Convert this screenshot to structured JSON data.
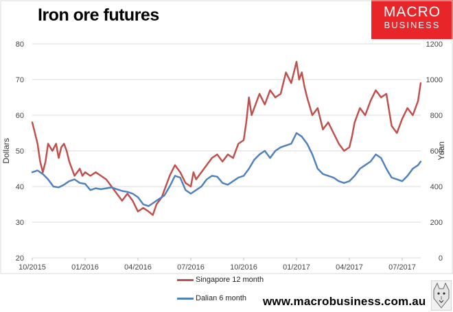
{
  "title": "Iron ore futures",
  "logo": {
    "line1": "MACRO",
    "line2": "BUSINESS"
  },
  "website": "www.macrobusiness.com.au",
  "colors": {
    "singapore": "#c0504d",
    "dalian": "#4f81bd",
    "logo_bg": "#e8262a"
  },
  "chart_data": {
    "type": "line",
    "title": "Iron ore futures",
    "x_ticks": [
      "10/2015",
      "01/2016",
      "04/2016",
      "07/2016",
      "10/2016",
      "01/2017",
      "04/2017",
      "07/2017"
    ],
    "y_left": {
      "label": "Dollars",
      "range": [
        20,
        80
      ],
      "ticks": [
        20,
        30,
        40,
        50,
        60,
        70,
        80
      ]
    },
    "y_right": {
      "label": "Yuan",
      "range": [
        0,
        1200
      ],
      "ticks": [
        0,
        200,
        400,
        600,
        800,
        1000,
        1200
      ]
    },
    "series": [
      {
        "name": "Singapore 12 month",
        "axis": "left",
        "color": "#c0504d",
        "x": [
          0,
          0.05,
          0.1,
          0.15,
          0.2,
          0.25,
          0.3,
          0.38,
          0.45,
          0.5,
          0.55,
          0.6,
          0.65,
          0.7,
          0.8,
          0.9,
          0.95,
          1.0,
          1.1,
          1.2,
          1.3,
          1.4,
          1.5,
          1.6,
          1.7,
          1.8,
          1.9,
          2.0,
          2.1,
          2.2,
          2.28,
          2.35,
          2.45,
          2.5,
          2.6,
          2.7,
          2.8,
          2.9,
          3.0,
          3.05,
          3.1,
          3.2,
          3.3,
          3.4,
          3.5,
          3.6,
          3.7,
          3.8,
          3.9,
          4.0,
          4.05,
          4.1,
          4.15,
          4.2,
          4.3,
          4.4,
          4.5,
          4.6,
          4.7,
          4.8,
          4.9,
          5.0,
          5.05,
          5.1,
          5.15,
          5.2,
          5.3,
          5.4,
          5.5,
          5.6,
          5.7,
          5.8,
          5.9,
          6.0,
          6.05,
          6.1,
          6.2,
          6.3,
          6.4,
          6.5,
          6.6,
          6.7,
          6.8,
          6.9,
          7.0,
          7.1,
          7.2,
          7.3,
          7.35
        ],
        "values": [
          58,
          55,
          52,
          47,
          44,
          47,
          52,
          50,
          52,
          48,
          51,
          52,
          50,
          47,
          43,
          45,
          43,
          44,
          43,
          44,
          43,
          42,
          40,
          38,
          36,
          38,
          36,
          33,
          34,
          33,
          32,
          35,
          37,
          39,
          43,
          46,
          44,
          41,
          40,
          44,
          42,
          44,
          46,
          48,
          49,
          47,
          49,
          48,
          52,
          53,
          58,
          65,
          60,
          62,
          66,
          63,
          67,
          65,
          66,
          72,
          69,
          75,
          70,
          72,
          68,
          65,
          60,
          62,
          56,
          58,
          55,
          52,
          50,
          51,
          54,
          58,
          62,
          60,
          64,
          67,
          65,
          66,
          57,
          55,
          59,
          62,
          60,
          64,
          69
        ]
      },
      {
        "name": "Dalian 6 month",
        "axis": "right",
        "color": "#4f81bd",
        "x": [
          0,
          0.1,
          0.2,
          0.3,
          0.4,
          0.5,
          0.6,
          0.7,
          0.8,
          0.9,
          1.0,
          1.1,
          1.2,
          1.3,
          1.4,
          1.5,
          1.6,
          1.7,
          1.8,
          1.9,
          2.0,
          2.1,
          2.2,
          2.3,
          2.4,
          2.5,
          2.6,
          2.7,
          2.8,
          2.9,
          3.0,
          3.1,
          3.2,
          3.3,
          3.4,
          3.5,
          3.6,
          3.7,
          3.8,
          3.9,
          4.0,
          4.1,
          4.2,
          4.3,
          4.4,
          4.5,
          4.6,
          4.7,
          4.8,
          4.9,
          5.0,
          5.1,
          5.2,
          5.3,
          5.4,
          5.5,
          5.6,
          5.7,
          5.8,
          5.9,
          6.0,
          6.1,
          6.2,
          6.3,
          6.4,
          6.5,
          6.6,
          6.7,
          6.8,
          6.9,
          7.0,
          7.1,
          7.2,
          7.3,
          7.35
        ],
        "values": [
          480,
          490,
          470,
          440,
          400,
          395,
          410,
          430,
          440,
          420,
          415,
          380,
          390,
          385,
          390,
          395,
          385,
          375,
          370,
          360,
          340,
          300,
          290,
          310,
          330,
          350,
          400,
          460,
          450,
          380,
          360,
          380,
          400,
          440,
          460,
          455,
          420,
          410,
          430,
          450,
          460,
          500,
          550,
          580,
          600,
          560,
          600,
          620,
          630,
          640,
          700,
          680,
          640,
          580,
          500,
          470,
          460,
          450,
          430,
          420,
          430,
          460,
          500,
          520,
          540,
          580,
          560,
          500,
          450,
          440,
          430,
          460,
          500,
          520,
          540
        ]
      }
    ]
  }
}
